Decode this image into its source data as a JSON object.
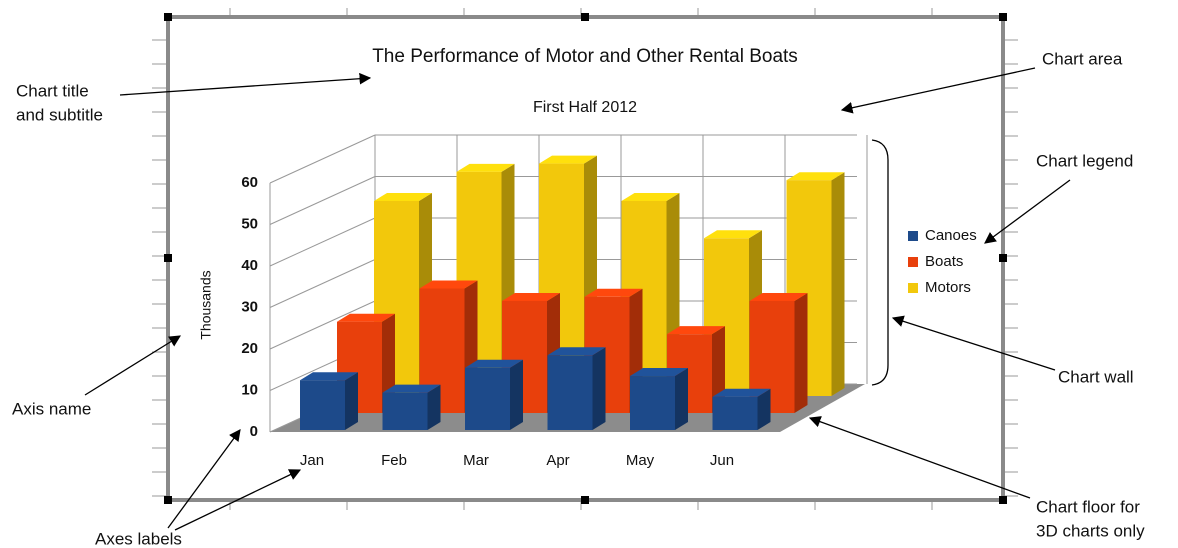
{
  "chart_data": {
    "type": "bar3d",
    "title": "The Performance of Motor and Other Rental Boats",
    "subtitle": "First Half 2012",
    "y_label": "Thousands",
    "categories": [
      "Jan",
      "Feb",
      "Mar",
      "Apr",
      "May",
      "Jun"
    ],
    "series": [
      {
        "name": "Canoes",
        "color": "#1d4a8a",
        "values": [
          12,
          9,
          15,
          18,
          13,
          8
        ]
      },
      {
        "name": "Boats",
        "color": "#e8400c",
        "values": [
          22,
          30,
          27,
          28,
          19,
          27
        ]
      },
      {
        "name": "Motors",
        "color": "#f2c80c",
        "values": [
          47,
          54,
          56,
          47,
          38,
          52
        ]
      }
    ],
    "ylim": [
      0,
      60
    ],
    "yticks": [
      0,
      10,
      20,
      30,
      40,
      50,
      60
    ],
    "grid": true,
    "legend": "right",
    "annotations": [
      [
        "Chart title",
        "and subtitle"
      ],
      [
        "Chart area"
      ],
      [
        "Chart legend"
      ],
      [
        "Chart wall"
      ],
      [
        "Axis name"
      ],
      [
        "Axes labels"
      ],
      [
        "Chart floor for",
        "3D charts only"
      ]
    ]
  }
}
